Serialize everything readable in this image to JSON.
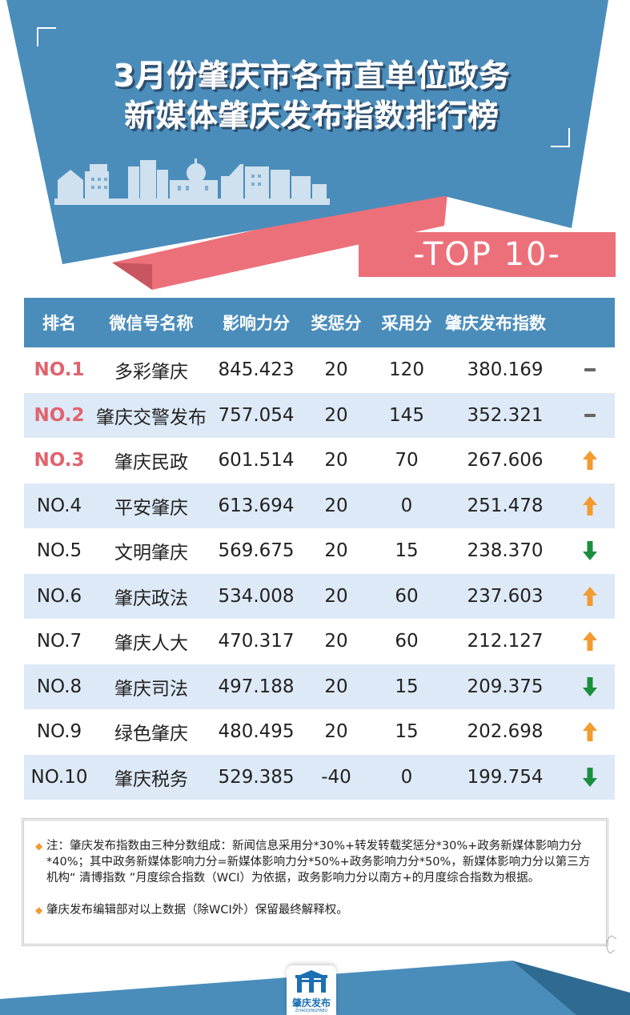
{
  "header": {
    "title_line1": "3月份肇庆市各市直单位政务",
    "title_line2": "新媒体肇庆发布指数排行榜",
    "badge": "-TOP 10-"
  },
  "colors": {
    "banner_blue": "#4a8dbb",
    "accent_red": "#ec707a",
    "row_alt": "#dde9f6",
    "up_arrow": "#f29b30",
    "down_arrow": "#1b8f3e",
    "flat": "#666666"
  },
  "table": {
    "headers": [
      "排名",
      "微信号名称",
      "影响力分",
      "奖惩分",
      "采用分",
      "肇庆发布指数"
    ],
    "rows": [
      {
        "rank": "NO.1",
        "name": "多彩肇庆",
        "influence": "845.423",
        "reward": "20",
        "adopt": "120",
        "index": "380.169",
        "trend": "flat"
      },
      {
        "rank": "NO.2",
        "name": "肇庆交警发布",
        "influence": "757.054",
        "reward": "20",
        "adopt": "145",
        "index": "352.321",
        "trend": "flat"
      },
      {
        "rank": "NO.3",
        "name": "肇庆民政",
        "influence": "601.514",
        "reward": "20",
        "adopt": "70",
        "index": "267.606",
        "trend": "up"
      },
      {
        "rank": "NO.4",
        "name": "平安肇庆",
        "influence": "613.694",
        "reward": "20",
        "adopt": "0",
        "index": "251.478",
        "trend": "up"
      },
      {
        "rank": "NO.5",
        "name": "文明肇庆",
        "influence": "569.675",
        "reward": "20",
        "adopt": "15",
        "index": "238.370",
        "trend": "down"
      },
      {
        "rank": "NO.6",
        "name": "肇庆政法",
        "influence": "534.008",
        "reward": "20",
        "adopt": "60",
        "index": "237.603",
        "trend": "up"
      },
      {
        "rank": "NO.7",
        "name": "肇庆人大",
        "influence": "470.317",
        "reward": "20",
        "adopt": "60",
        "index": "212.127",
        "trend": "up"
      },
      {
        "rank": "NO.8",
        "name": "肇庆司法",
        "influence": "497.188",
        "reward": "20",
        "adopt": "15",
        "index": "209.375",
        "trend": "down"
      },
      {
        "rank": "NO.9",
        "name": "绿色肇庆",
        "influence": "480.495",
        "reward": "20",
        "adopt": "15",
        "index": "202.698",
        "trend": "up"
      },
      {
        "rank": "NO.10",
        "name": "肇庆税务",
        "influence": "529.385",
        "reward": "-40",
        "adopt": "0",
        "index": "199.754",
        "trend": "down"
      }
    ]
  },
  "notes": {
    "note1": "注：肇庆发布指数由三种分数组成：新闻信息采用分*30%+转发转载奖惩分*30%+政务新媒体影响力分*40%；其中政务新媒体影响力分=新媒体影响力分*50%+政务影响力分*50%，新媒体影响力分以第三方机构“ 清博指数 ”月度综合指数（WCI）为依据，政务影响力分以南方+的月度综合指数为根据。",
    "note2": "肇庆发布编辑部对以上数据（除WCI外）保留最终解释权。"
  },
  "footer": {
    "logo_text": "肇庆发布",
    "logo_sub": "ZHAOQINGFABU"
  }
}
